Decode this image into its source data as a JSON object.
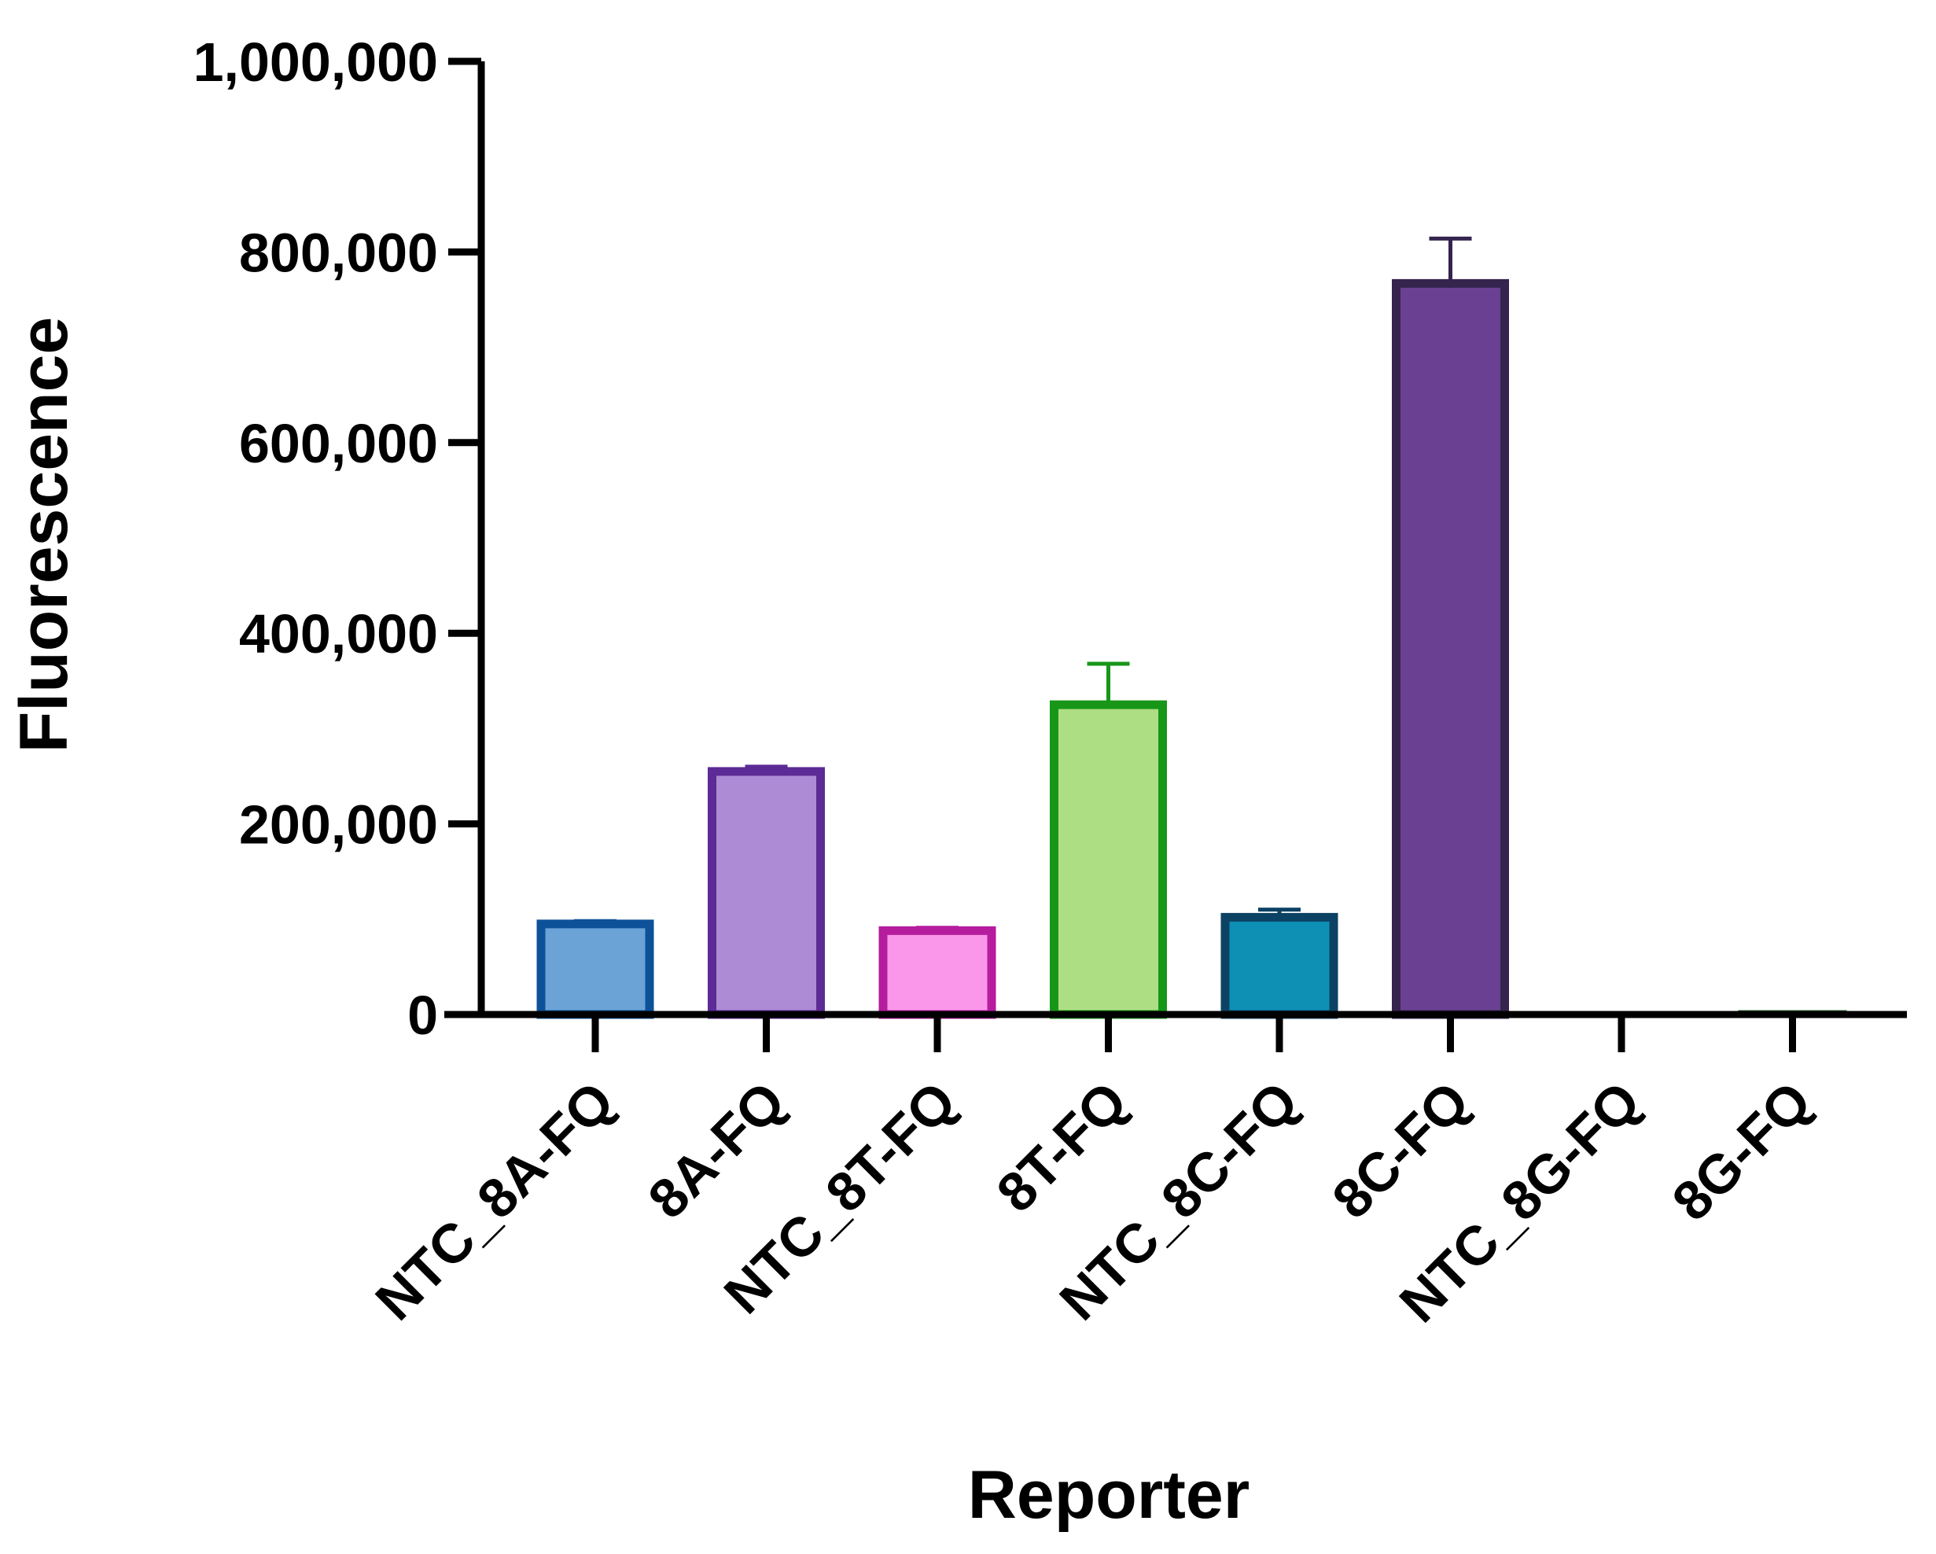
{
  "chart_data": {
    "type": "bar",
    "title": "",
    "xlabel": "Reporter",
    "ylabel": "Fluorescence",
    "ylim": [
      0,
      1000000
    ],
    "yticks": [
      0,
      200000,
      400000,
      600000,
      800000,
      1000000
    ],
    "ytick_labels": [
      "0",
      "200,000",
      "400,000",
      "600,000",
      "800,000",
      "1,000,000"
    ],
    "grid": false,
    "legend": "none",
    "categories": [
      "NTC_8A-FQ",
      "8A-FQ",
      "NTC_8T-FQ",
      "8T-FQ",
      "NTC_8C-FQ",
      "8C-FQ",
      "NTC_8G-FQ",
      "8G-FQ"
    ],
    "values": [
      95000,
      255000,
      88000,
      325000,
      102000,
      767000,
      0,
      2000
    ],
    "error": [
      3000,
      5000,
      3000,
      43000,
      8000,
      47000,
      0,
      0
    ],
    "fill_colors": [
      "#6ba3d6",
      "#ad8bd5",
      "#fb97ea",
      "#aede84",
      "#0e90b5",
      "#6a4192",
      "#ffffff",
      "#ffffff"
    ],
    "edge_colors": [
      "#0d5199",
      "#5c2b95",
      "#b51c9e",
      "#179618",
      "#0c4264",
      "#35244e",
      "#000000",
      "#1c5e28"
    ]
  }
}
